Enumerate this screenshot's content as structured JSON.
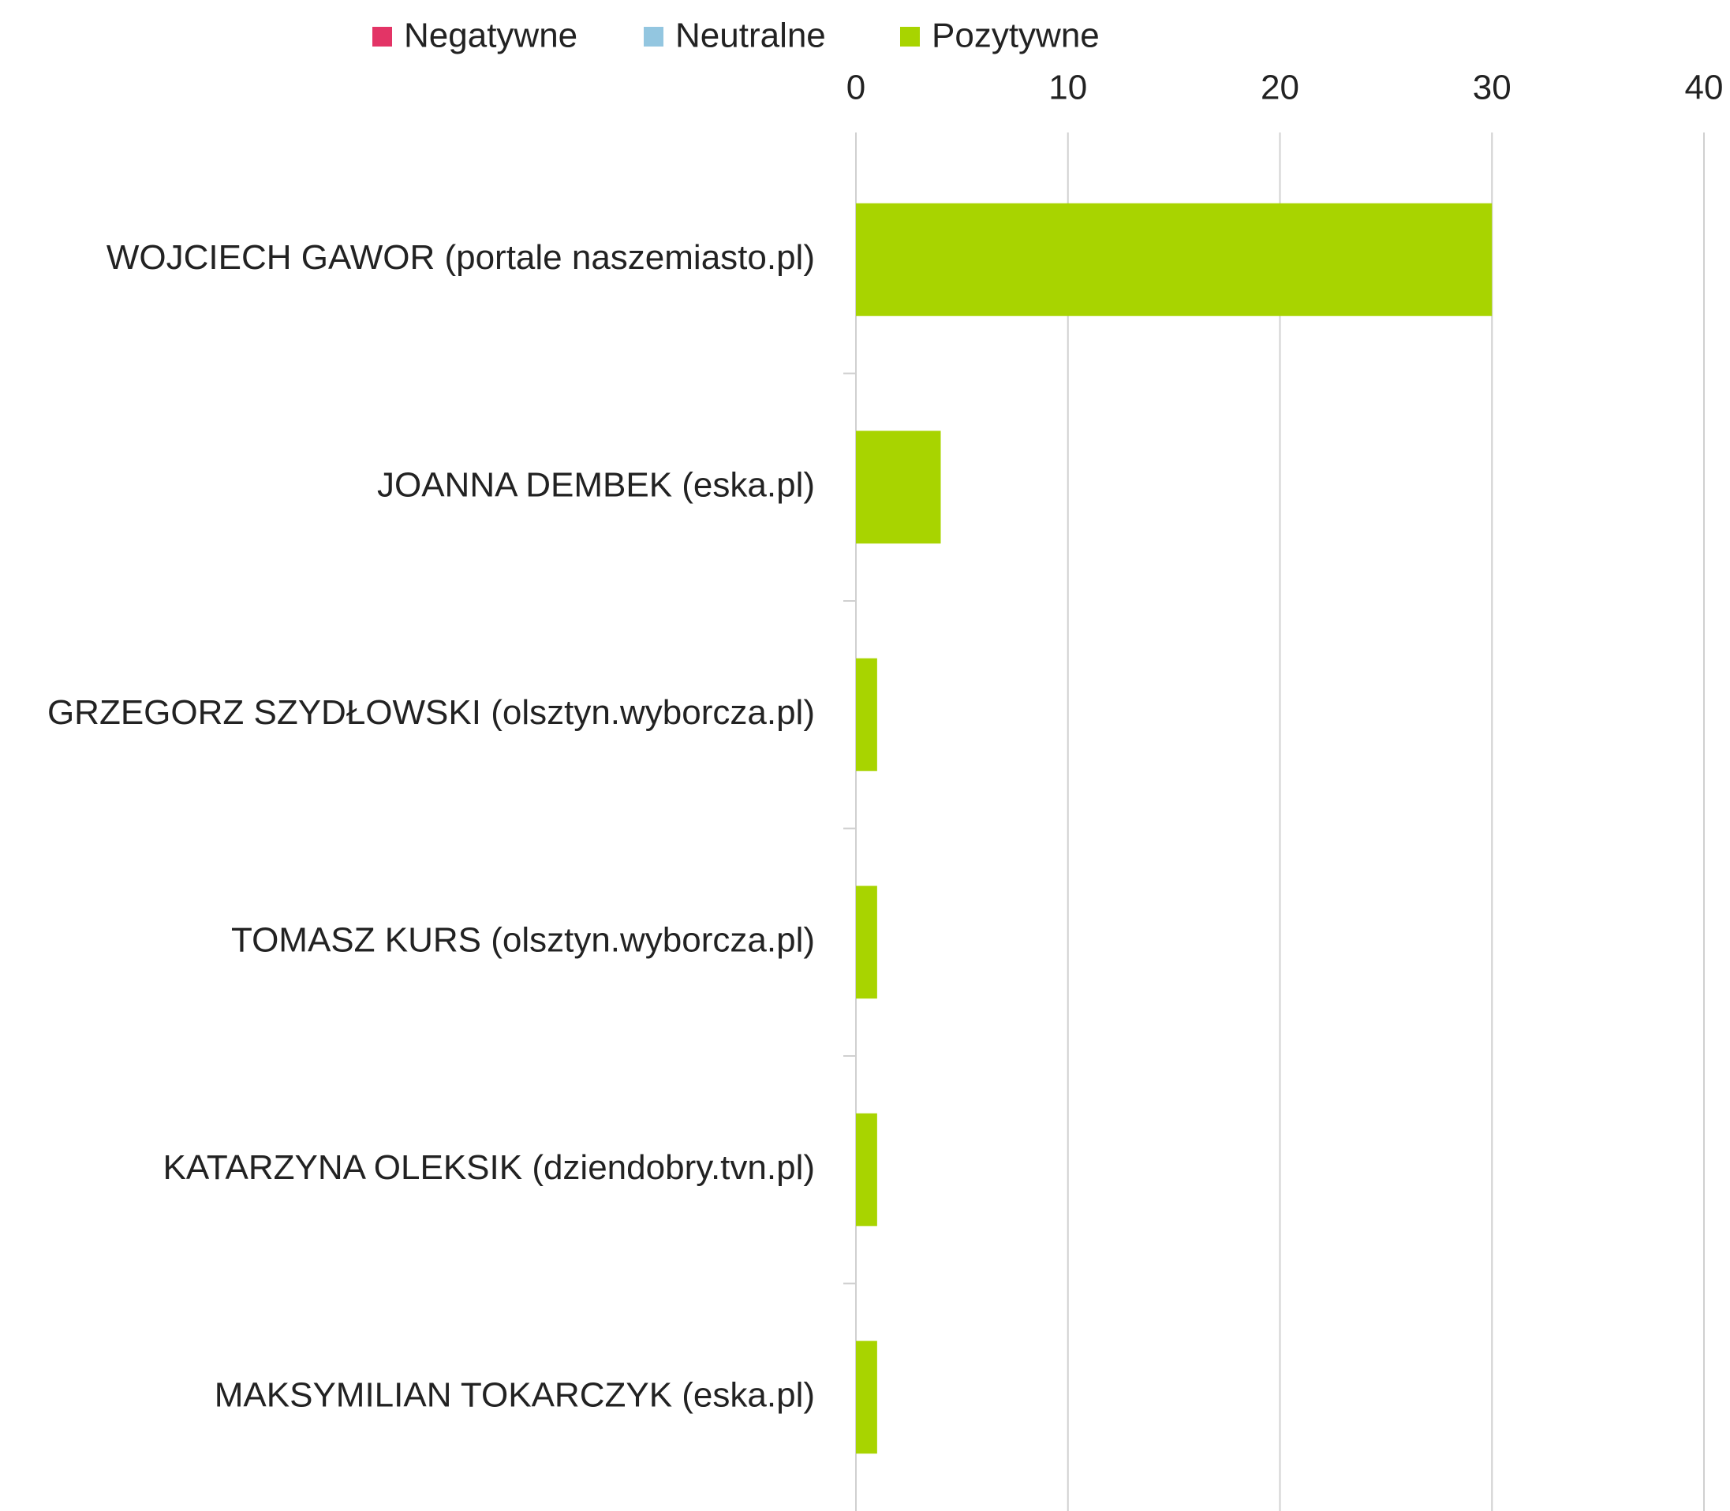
{
  "chart_data": {
    "type": "stacked_barh",
    "categories": [
      "WOJCIECH GAWOR (portale naszemiasto.pl)",
      "JOANNA DEMBEK (eska.pl)",
      "GRZEGORZ SZYDŁOWSKI (olsztyn.wyborcza.pl)",
      "TOMASZ KURS (olsztyn.wyborcza.pl)",
      "KATARZYNA OLEKSIK (dziendobry.tvn.pl)",
      "MAKSYMILIAN TOKARCZYK (eska.pl)"
    ],
    "series": [
      {
        "name": "Negatywne",
        "color": "#e33466",
        "values": [
          0,
          0,
          0,
          0,
          0,
          0
        ]
      },
      {
        "name": "Neutralne",
        "color": "#93c6e0",
        "values": [
          0,
          0,
          0,
          0,
          0,
          0
        ]
      },
      {
        "name": "Pozytywne",
        "color": "#a8d400",
        "values": [
          30,
          4,
          1,
          1,
          1,
          1
        ]
      }
    ],
    "xlim": [
      0,
      40
    ],
    "xticks": [
      0,
      10,
      20,
      30,
      40
    ],
    "grid": true,
    "legend": "top"
  }
}
